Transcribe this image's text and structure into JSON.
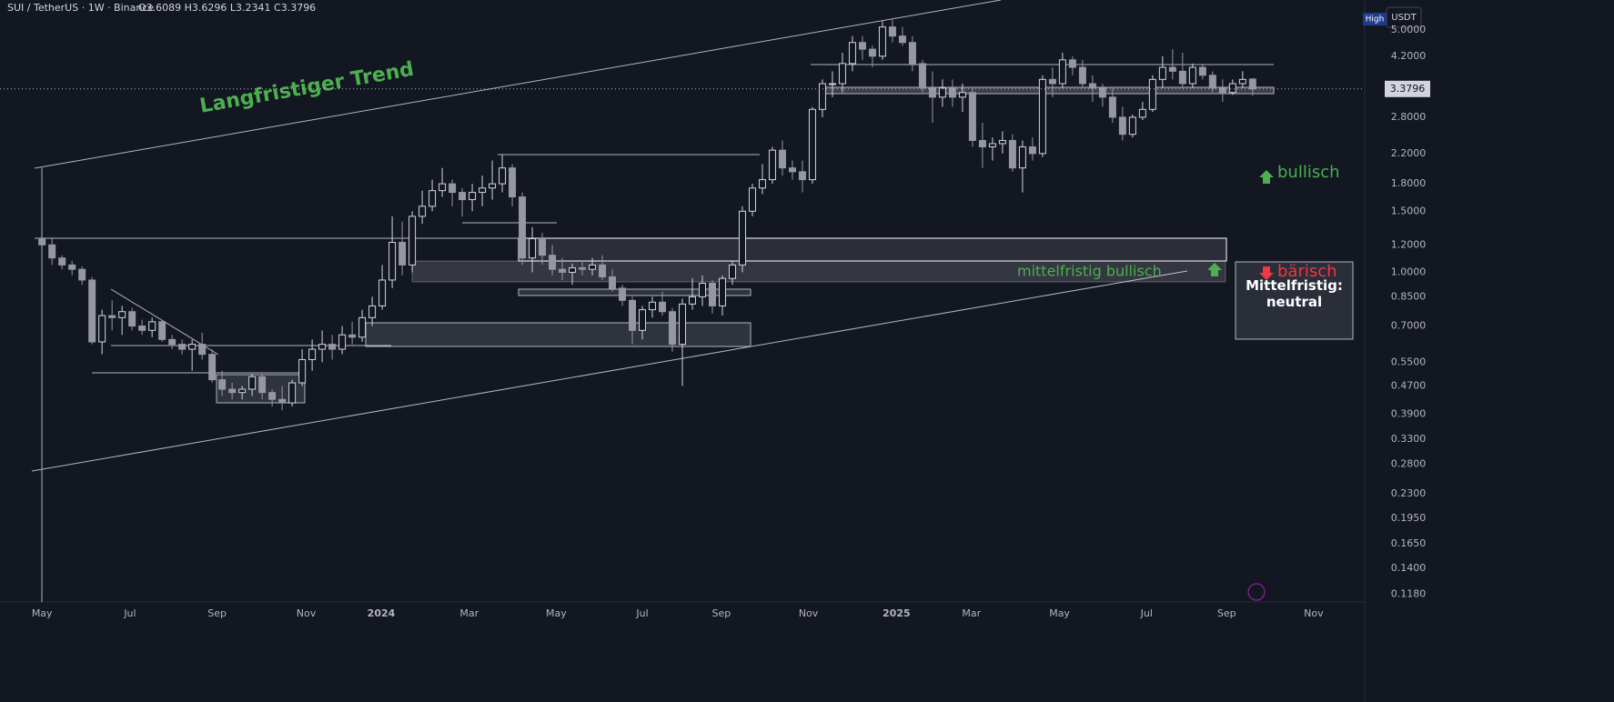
{
  "chart_data": {
    "type": "candlestick",
    "header": "SUI / TetherUS · 1W · Binance",
    "ohlc_text": "O3.6089 H3.6296 L3.2341 C3.3796",
    "currency": "USDT",
    "high_badge": "High",
    "log_scale": true,
    "up_color": "#d1d4dc",
    "down_color": "#9598a1",
    "annotations": {
      "trend": "Langfristiger Trend",
      "mid_bull": "mittelfristig bullisch",
      "bull": "bullisch",
      "neutral": "Mittelfristig: neutral",
      "bear": "bärisch"
    },
    "ylim": [
      0.112,
      6.1
    ],
    "yticks": [
      {
        "value": 5,
        "label": "5.0000"
      },
      {
        "value": 4.2,
        "label": "4.2000"
      },
      {
        "value": 2.8,
        "label": "2.8000"
      },
      {
        "value": 2.2,
        "label": "2.2000"
      },
      {
        "value": 1.8,
        "label": "1.8000"
      },
      {
        "value": 1.5,
        "label": "1.5000"
      },
      {
        "value": 1.2,
        "label": "1.2000"
      },
      {
        "value": 1,
        "label": "1.0000"
      },
      {
        "value": 0.85,
        "label": "0.8500"
      },
      {
        "value": 0.7,
        "label": "0.7000"
      },
      {
        "value": 0.55,
        "label": "0.5500"
      },
      {
        "value": 0.47,
        "label": "0.4700"
      },
      {
        "value": 0.39,
        "label": "0.3900"
      },
      {
        "value": 0.33,
        "label": "0.3300"
      },
      {
        "value": 0.28,
        "label": "0.2800"
      },
      {
        "value": 0.23,
        "label": "0.2300"
      },
      {
        "value": 0.195,
        "label": "0.1950"
      },
      {
        "value": 0.165,
        "label": "0.1650"
      },
      {
        "value": 0.14,
        "label": "0.1400"
      },
      {
        "value": 0.118,
        "label": "0.1180"
      }
    ],
    "xlim": [
      -4.2,
      132.2
    ],
    "xticks": [
      {
        "value": 0,
        "label": "May"
      },
      {
        "value": 8.8,
        "label": "Jul"
      },
      {
        "value": 17.5,
        "label": "Sep"
      },
      {
        "value": 26.4,
        "label": "Nov"
      },
      {
        "value": 33.9,
        "label": "2024"
      },
      {
        "value": 42.7,
        "label": "Mar"
      },
      {
        "value": 51.4,
        "label": "May"
      },
      {
        "value": 60,
        "label": "Jul"
      },
      {
        "value": 67.9,
        "label": "Sep"
      },
      {
        "value": 76.6,
        "label": "Nov"
      },
      {
        "value": 85.4,
        "label": "2025"
      },
      {
        "value": 92.9,
        "label": "Mar"
      },
      {
        "value": 101.7,
        "label": "May"
      },
      {
        "value": 110.4,
        "label": "Jul"
      },
      {
        "value": 118.4,
        "label": "Sep"
      },
      {
        "value": 127.1,
        "label": "Nov"
      }
    ],
    "ohlc": [
      [
        1.25,
        2.0,
        0.118,
        1.2
      ],
      [
        1.2,
        1.25,
        1.05,
        1.1
      ],
      [
        1.1,
        1.12,
        1.02,
        1.05
      ],
      [
        1.05,
        1.08,
        0.98,
        1.02
      ],
      [
        1.02,
        1.04,
        0.92,
        0.95
      ],
      [
        0.95,
        0.97,
        0.62,
        0.63
      ],
      [
        0.63,
        0.78,
        0.58,
        0.75
      ],
      [
        0.75,
        0.83,
        0.68,
        0.74
      ],
      [
        0.74,
        0.8,
        0.66,
        0.77
      ],
      [
        0.77,
        0.79,
        0.68,
        0.7
      ],
      [
        0.7,
        0.73,
        0.66,
        0.68
      ],
      [
        0.68,
        0.74,
        0.65,
        0.72
      ],
      [
        0.72,
        0.73,
        0.63,
        0.64
      ],
      [
        0.64,
        0.66,
        0.6,
        0.62
      ],
      [
        0.62,
        0.64,
        0.58,
        0.6
      ],
      [
        0.6,
        0.64,
        0.52,
        0.62
      ],
      [
        0.62,
        0.67,
        0.56,
        0.58
      ],
      [
        0.58,
        0.6,
        0.48,
        0.49
      ],
      [
        0.49,
        0.52,
        0.44,
        0.46
      ],
      [
        0.46,
        0.48,
        0.43,
        0.45
      ],
      [
        0.45,
        0.47,
        0.43,
        0.46
      ],
      [
        0.46,
        0.51,
        0.44,
        0.5
      ],
      [
        0.5,
        0.51,
        0.43,
        0.45
      ],
      [
        0.45,
        0.46,
        0.41,
        0.43
      ],
      [
        0.43,
        0.47,
        0.4,
        0.42
      ],
      [
        0.42,
        0.49,
        0.41,
        0.48
      ],
      [
        0.48,
        0.6,
        0.47,
        0.56
      ],
      [
        0.56,
        0.64,
        0.52,
        0.6
      ],
      [
        0.6,
        0.68,
        0.55,
        0.62
      ],
      [
        0.62,
        0.66,
        0.56,
        0.6
      ],
      [
        0.6,
        0.7,
        0.58,
        0.66
      ],
      [
        0.66,
        0.72,
        0.62,
        0.65
      ],
      [
        0.65,
        0.78,
        0.63,
        0.74
      ],
      [
        0.74,
        0.85,
        0.7,
        0.8
      ],
      [
        0.8,
        1.05,
        0.78,
        0.95
      ],
      [
        0.95,
        1.45,
        0.9,
        1.22
      ],
      [
        1.22,
        1.4,
        0.98,
        1.05
      ],
      [
        1.05,
        1.5,
        1.0,
        1.45
      ],
      [
        1.45,
        1.72,
        1.38,
        1.55
      ],
      [
        1.55,
        1.85,
        1.5,
        1.72
      ],
      [
        1.72,
        2.0,
        1.65,
        1.8
      ],
      [
        1.8,
        1.85,
        1.55,
        1.7
      ],
      [
        1.7,
        1.75,
        1.45,
        1.62
      ],
      [
        1.62,
        1.8,
        1.5,
        1.7
      ],
      [
        1.7,
        1.9,
        1.55,
        1.75
      ],
      [
        1.75,
        2.1,
        1.62,
        1.8
      ],
      [
        1.8,
        2.18,
        1.7,
        2.0
      ],
      [
        2.0,
        2.05,
        1.55,
        1.65
      ],
      [
        1.65,
        1.7,
        1.05,
        1.1
      ],
      [
        1.1,
        1.35,
        1.0,
        1.25
      ],
      [
        1.25,
        1.3,
        1.05,
        1.12
      ],
      [
        1.12,
        1.2,
        0.98,
        1.02
      ],
      [
        1.02,
        1.1,
        0.95,
        1.0
      ],
      [
        1.0,
        1.06,
        0.92,
        1.03
      ],
      [
        1.03,
        1.08,
        0.98,
        1.02
      ],
      [
        1.02,
        1.1,
        0.98,
        1.05
      ],
      [
        1.05,
        1.12,
        0.95,
        0.97
      ],
      [
        0.97,
        1.02,
        0.88,
        0.9
      ],
      [
        0.9,
        0.92,
        0.8,
        0.83
      ],
      [
        0.83,
        0.85,
        0.62,
        0.68
      ],
      [
        0.68,
        0.8,
        0.64,
        0.78
      ],
      [
        0.78,
        0.85,
        0.74,
        0.82
      ],
      [
        0.82,
        0.88,
        0.75,
        0.77
      ],
      [
        0.77,
        0.79,
        0.59,
        0.62
      ],
      [
        0.62,
        0.84,
        0.47,
        0.81
      ],
      [
        0.81,
        0.96,
        0.78,
        0.85
      ],
      [
        0.85,
        0.98,
        0.8,
        0.93
      ],
      [
        0.93,
        0.95,
        0.76,
        0.8
      ],
      [
        0.8,
        0.98,
        0.75,
        0.96
      ],
      [
        0.96,
        1.08,
        0.92,
        1.05
      ],
      [
        1.05,
        1.55,
        1.0,
        1.5
      ],
      [
        1.5,
        1.8,
        1.45,
        1.75
      ],
      [
        1.75,
        2.05,
        1.68,
        1.85
      ],
      [
        1.85,
        2.3,
        1.8,
        2.25
      ],
      [
        2.25,
        2.4,
        1.9,
        2.0
      ],
      [
        2.0,
        2.1,
        1.85,
        1.95
      ],
      [
        1.95,
        2.1,
        1.7,
        1.85
      ],
      [
        1.85,
        3.0,
        1.8,
        2.95
      ],
      [
        2.95,
        3.6,
        2.8,
        3.5
      ],
      [
        3.5,
        3.8,
        3.2,
        3.5
      ],
      [
        3.5,
        4.3,
        3.3,
        4.0
      ],
      [
        4.0,
        4.8,
        3.8,
        4.6
      ],
      [
        4.6,
        4.8,
        4.1,
        4.4
      ],
      [
        4.4,
        4.5,
        3.9,
        4.2
      ],
      [
        4.2,
        5.3,
        4.1,
        5.1
      ],
      [
        5.1,
        5.35,
        4.6,
        4.8
      ],
      [
        4.8,
        5.1,
        4.5,
        4.6
      ],
      [
        4.6,
        4.8,
        3.8,
        4.0
      ],
      [
        4.0,
        4.1,
        3.3,
        3.4
      ],
      [
        3.4,
        3.8,
        2.7,
        3.2
      ],
      [
        3.2,
        3.6,
        3.0,
        3.4
      ],
      [
        3.4,
        3.6,
        3.0,
        3.2
      ],
      [
        3.2,
        3.5,
        2.9,
        3.3
      ],
      [
        3.3,
        3.4,
        2.3,
        2.4
      ],
      [
        2.4,
        2.7,
        2.0,
        2.3
      ],
      [
        2.3,
        2.45,
        2.1,
        2.35
      ],
      [
        2.35,
        2.55,
        2.2,
        2.4
      ],
      [
        2.4,
        2.5,
        1.95,
        2.0
      ],
      [
        2.0,
        2.4,
        1.7,
        2.3
      ],
      [
        2.3,
        2.45,
        2.1,
        2.2
      ],
      [
        2.2,
        3.7,
        2.15,
        3.6
      ],
      [
        3.6,
        3.9,
        3.2,
        3.5
      ],
      [
        3.5,
        4.3,
        3.4,
        4.1
      ],
      [
        4.1,
        4.2,
        3.7,
        3.9
      ],
      [
        3.9,
        4.1,
        3.4,
        3.5
      ],
      [
        3.5,
        3.7,
        3.1,
        3.4
      ],
      [
        3.4,
        3.5,
        3.0,
        3.2
      ],
      [
        3.2,
        3.4,
        2.7,
        2.8
      ],
      [
        2.8,
        3.0,
        2.4,
        2.5
      ],
      [
        2.5,
        2.85,
        2.45,
        2.8
      ],
      [
        2.8,
        3.1,
        2.75,
        2.95
      ],
      [
        2.95,
        3.7,
        2.9,
        3.6
      ],
      [
        3.6,
        4.2,
        3.4,
        3.9
      ],
      [
        3.9,
        4.4,
        3.6,
        3.8
      ],
      [
        3.8,
        4.3,
        3.4,
        3.5
      ],
      [
        3.5,
        4.0,
        3.4,
        3.9
      ],
      [
        3.9,
        4.0,
        3.6,
        3.7
      ],
      [
        3.7,
        3.8,
        3.3,
        3.4
      ],
      [
        3.4,
        3.6,
        3.1,
        3.3
      ],
      [
        3.3,
        3.6,
        3.25,
        3.5
      ],
      [
        3.5,
        3.8,
        3.4,
        3.6
      ],
      [
        3.6089,
        3.6296,
        3.2341,
        3.3796
      ]
    ]
  }
}
